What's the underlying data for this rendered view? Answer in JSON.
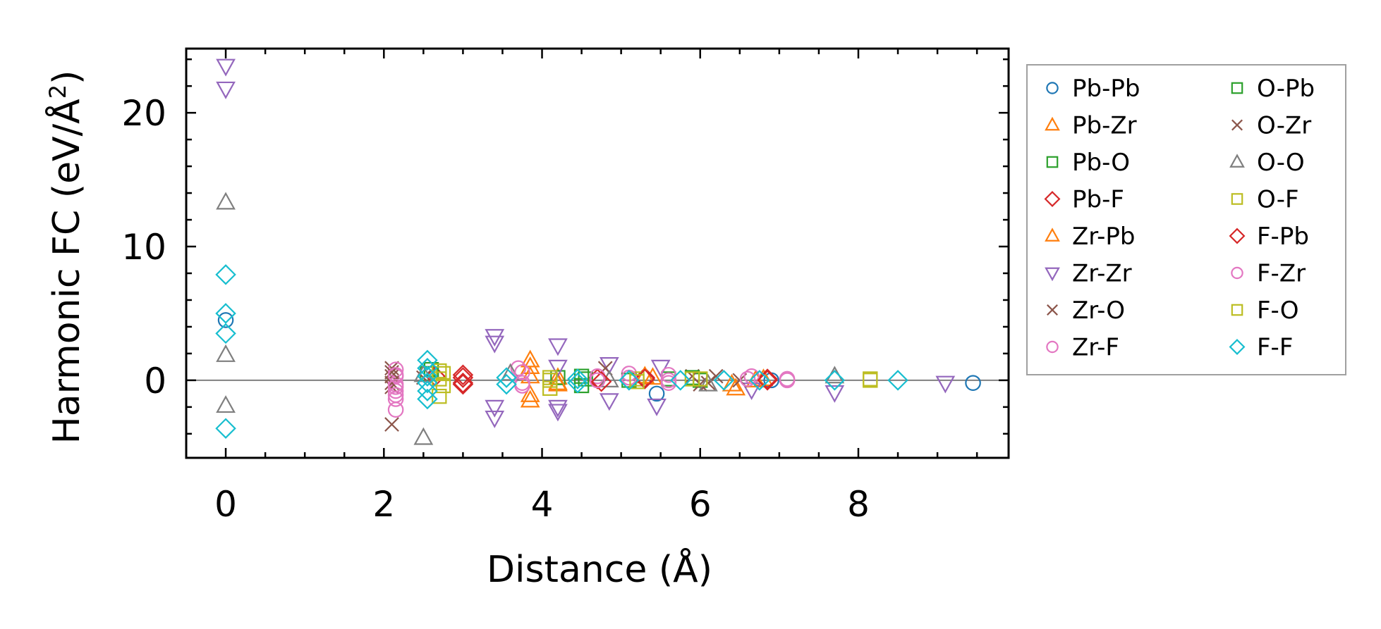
{
  "chart_data": {
    "type": "scatter",
    "xlabel": "Distance (Å)",
    "ylabel_main": "Harmonic FC (eV/Å",
    "ylabel_sup": "2",
    "ylabel_end": ")",
    "xlim": [
      -0.5,
      9.9
    ],
    "ylim": [
      -5.8,
      24.8
    ],
    "x_ticks": [
      0,
      2,
      4,
      6,
      8
    ],
    "x_tick_labels": [
      "0",
      "2",
      "4",
      "6",
      "8"
    ],
    "y_ticks": [
      0,
      10,
      20
    ],
    "y_tick_labels": [
      "0",
      "10",
      "20"
    ],
    "x_minor_step": 0.5,
    "y_minor_step": 2,
    "zero_line": true,
    "grid": false,
    "legend_position": "outside-right",
    "legend_columns": 2,
    "series": [
      {
        "name": "Pb-Pb",
        "color": "#1f77b4",
        "marker": "circle",
        "points": [
          [
            0,
            4.5
          ],
          [
            5.45,
            -1.0
          ],
          [
            6.9,
            0.0
          ],
          [
            9.45,
            -0.2
          ]
        ]
      },
      {
        "name": "Pb-Zr",
        "color": "#ff7f0e",
        "marker": "triangle-up",
        "points": [
          [
            3.85,
            1.5
          ],
          [
            3.85,
            -1.5
          ],
          [
            3.85,
            0.3
          ],
          [
            4.2,
            0.2
          ],
          [
            4.2,
            -0.3
          ],
          [
            5.4,
            0.2
          ],
          [
            6.45,
            -0.6
          ],
          [
            6.8,
            0.1
          ]
        ]
      },
      {
        "name": "Pb-O",
        "color": "#2ca02c",
        "marker": "square",
        "points": [
          [
            2.55,
            0.5
          ],
          [
            4.2,
            0.2
          ],
          [
            4.55,
            0.1
          ],
          [
            5.6,
            0.1
          ],
          [
            6.0,
            0.0
          ]
        ]
      },
      {
        "name": "Pb-F",
        "color": "#d62728",
        "marker": "diamond",
        "points": [
          [
            2.65,
            0.3
          ],
          [
            3.0,
            0.4
          ],
          [
            3.0,
            -0.2
          ],
          [
            4.7,
            0.1
          ],
          [
            5.3,
            0.2
          ],
          [
            6.85,
            0.1
          ]
        ]
      },
      {
        "name": "Zr-Pb",
        "color": "#ff7f0e",
        "marker": "triangle-up",
        "points": [
          [
            3.85,
            1.0
          ],
          [
            3.85,
            -1.1
          ],
          [
            4.2,
            -0.2
          ],
          [
            5.3,
            0.3
          ],
          [
            6.4,
            -0.3
          ],
          [
            6.7,
            0.0
          ]
        ]
      },
      {
        "name": "Zr-Zr",
        "color": "#9467bd",
        "marker": "triangle-down",
        "points": [
          [
            0,
            23.5
          ],
          [
            0,
            21.8
          ],
          [
            3.4,
            3.3
          ],
          [
            3.4,
            2.8
          ],
          [
            3.4,
            -2.0
          ],
          [
            3.4,
            -2.8
          ],
          [
            4.2,
            2.6
          ],
          [
            4.2,
            -2.0
          ],
          [
            4.2,
            -2.3
          ],
          [
            4.2,
            1.0
          ],
          [
            4.85,
            1.2
          ],
          [
            4.85,
            -1.5
          ],
          [
            5.45,
            -1.9
          ],
          [
            5.5,
            1.0
          ],
          [
            6.65,
            -0.7
          ],
          [
            7.7,
            -0.9
          ],
          [
            9.1,
            -0.2
          ]
        ]
      },
      {
        "name": "Zr-O",
        "color": "#8c564b",
        "marker": "x",
        "points": [
          [
            2.1,
            0.9
          ],
          [
            2.1,
            -3.3
          ],
          [
            2.1,
            0.3
          ],
          [
            2.1,
            -0.5
          ],
          [
            4.8,
            0.9
          ],
          [
            5.9,
            0.3
          ],
          [
            6.0,
            -0.3
          ],
          [
            6.5,
            0.0
          ]
        ]
      },
      {
        "name": "Zr-F",
        "color": "#e377c2",
        "marker": "circle",
        "points": [
          [
            2.15,
            0.8
          ],
          [
            2.15,
            0.3
          ],
          [
            2.15,
            -0.3
          ],
          [
            2.15,
            -0.8
          ],
          [
            2.15,
            -1.4
          ],
          [
            2.15,
            -2.2
          ],
          [
            3.7,
            0.9
          ],
          [
            3.75,
            -0.4
          ],
          [
            4.7,
            0.3
          ],
          [
            5.1,
            0.5
          ],
          [
            5.6,
            0.4
          ],
          [
            5.6,
            -0.2
          ],
          [
            6.65,
            0.3
          ],
          [
            7.1,
            0.1
          ]
        ]
      },
      {
        "name": "O-Pb",
        "color": "#2ca02c",
        "marker": "square",
        "points": [
          [
            2.6,
            0.8
          ],
          [
            4.5,
            0.3
          ],
          [
            4.5,
            -0.4
          ],
          [
            5.1,
            0.0
          ],
          [
            5.9,
            0.2
          ]
        ]
      },
      {
        "name": "O-Zr",
        "color": "#8c564b",
        "marker": "x",
        "points": [
          [
            2.1,
            0.6
          ],
          [
            2.1,
            -0.2
          ],
          [
            2.5,
            0.2
          ],
          [
            6.1,
            -0.2
          ],
          [
            6.2,
            0.3
          ]
        ]
      },
      {
        "name": "O-O",
        "color": "#7f7f7f",
        "marker": "triangle-up",
        "points": [
          [
            0,
            13.3
          ],
          [
            0,
            1.9
          ],
          [
            0,
            -1.9
          ],
          [
            2.5,
            -4.3
          ],
          [
            2.5,
            0.4
          ],
          [
            3.6,
            0.5
          ],
          [
            4.85,
            0.0
          ],
          [
            6.1,
            -0.3
          ],
          [
            7.7,
            0.3
          ]
        ]
      },
      {
        "name": "O-F",
        "color": "#bcbd22",
        "marker": "square",
        "points": [
          [
            2.7,
            0.7
          ],
          [
            2.7,
            -1.2
          ],
          [
            2.7,
            0.1
          ],
          [
            4.1,
            0.2
          ],
          [
            4.1,
            -0.6
          ],
          [
            5.2,
            0.1
          ],
          [
            5.9,
            0.1
          ],
          [
            8.15,
            0.0
          ]
        ]
      },
      {
        "name": "F-Pb",
        "color": "#d62728",
        "marker": "diamond",
        "points": [
          [
            3.0,
            0.2
          ],
          [
            3.0,
            -0.3
          ],
          [
            4.75,
            -0.1
          ],
          [
            5.3,
            0.1
          ],
          [
            6.85,
            0.0
          ]
        ]
      },
      {
        "name": "F-Zr",
        "color": "#e377c2",
        "marker": "circle",
        "points": [
          [
            2.15,
            0.4
          ],
          [
            2.15,
            -0.5
          ],
          [
            2.15,
            -1.1
          ],
          [
            3.75,
            0.6
          ],
          [
            3.75,
            -0.2
          ],
          [
            4.7,
            0.0
          ],
          [
            5.1,
            0.2
          ],
          [
            5.6,
            0.0
          ],
          [
            6.6,
            0.1
          ],
          [
            7.1,
            0.0
          ]
        ]
      },
      {
        "name": "F-O",
        "color": "#bcbd22",
        "marker": "square",
        "points": [
          [
            2.75,
            0.5
          ],
          [
            2.75,
            -0.4
          ],
          [
            4.1,
            0.0
          ],
          [
            5.2,
            -0.1
          ],
          [
            6.0,
            0.1
          ],
          [
            8.15,
            0.1
          ]
        ]
      },
      {
        "name": "F-F",
        "color": "#17becf",
        "marker": "diamond",
        "points": [
          [
            0,
            7.9
          ],
          [
            0,
            5.0
          ],
          [
            0,
            3.5
          ],
          [
            0,
            -3.6
          ],
          [
            2.55,
            1.5
          ],
          [
            2.55,
            0.9
          ],
          [
            2.55,
            0.3
          ],
          [
            2.55,
            -0.2
          ],
          [
            2.55,
            -0.8
          ],
          [
            2.55,
            -1.4
          ],
          [
            3.55,
            0.2
          ],
          [
            3.55,
            -0.3
          ],
          [
            4.45,
            0.1
          ],
          [
            4.45,
            -0.2
          ],
          [
            5.1,
            0.0
          ],
          [
            5.75,
            0.0
          ],
          [
            6.3,
            0.0
          ],
          [
            6.75,
            0.0
          ],
          [
            7.7,
            0.0
          ],
          [
            8.5,
            0.0
          ]
        ]
      }
    ]
  }
}
